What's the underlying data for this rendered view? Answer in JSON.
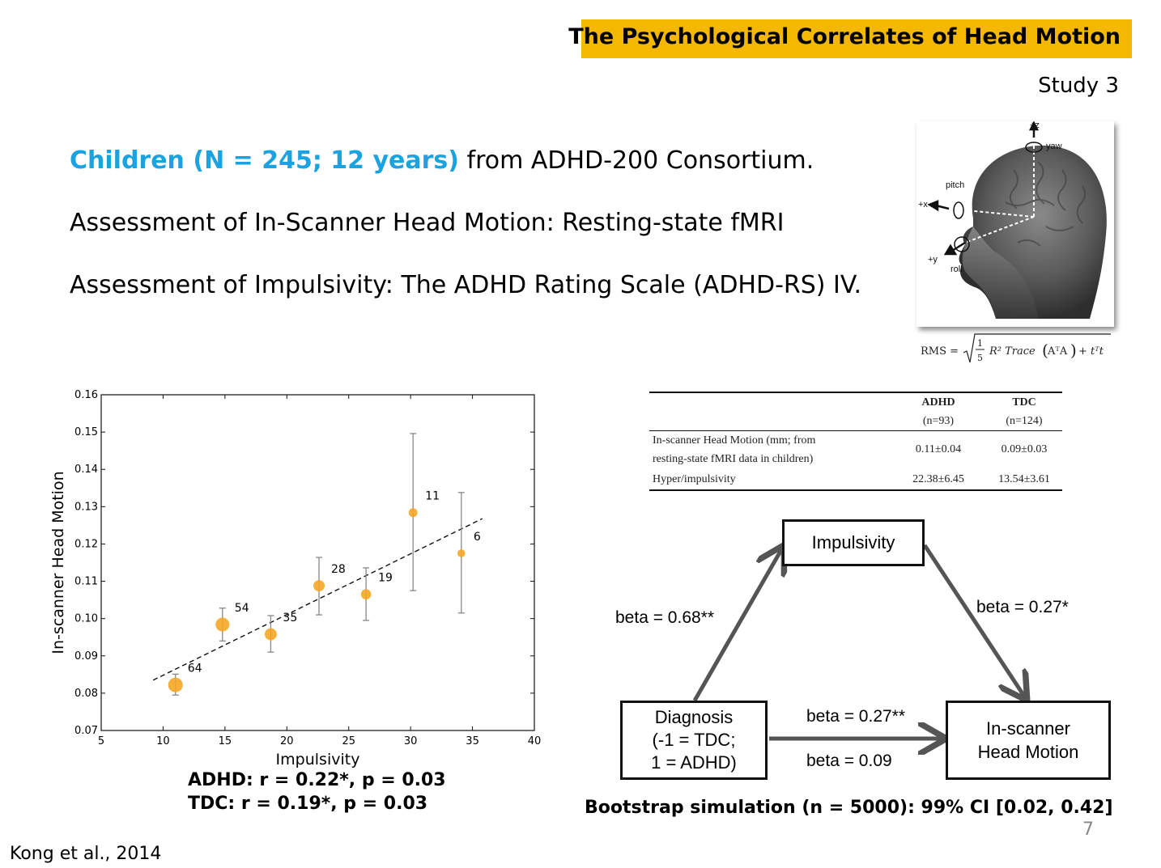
{
  "header": {
    "title": "The Psychological Correlates of Head Motion",
    "study": "Study 3"
  },
  "bullets": {
    "line1_highlight": "Children (N = 245; 12 years)",
    "line1_rest": " from ADHD-200 Consortium.",
    "line2": "Assessment of In-Scanner Head Motion: Resting-state fMRI",
    "line3": "Assessment of Impulsivity: The ADHD Rating Scale (ADHD-RS) IV."
  },
  "head_figure": {
    "labels": {
      "z": "+z",
      "yaw": "yaw",
      "pitch": "pitch",
      "x": "+x",
      "y": "+y",
      "roll": "roll"
    },
    "formula": {
      "lhs": "RMS =",
      "frac_num": "1",
      "frac_den": "5",
      "body": "R² Trace",
      "matrix": "AᵀA",
      "tail": "+ tᵀt"
    }
  },
  "chart_data": {
    "type": "scatter",
    "xlabel": "Impulsivity",
    "ylabel": "In-scanner Head Motion",
    "xlim": [
      5,
      40
    ],
    "ylim": [
      0.07,
      0.16
    ],
    "xticks": [
      "5",
      "10",
      "15",
      "20",
      "25",
      "30",
      "35",
      "40"
    ],
    "yticks": [
      "0.07",
      "0.08",
      "0.09",
      "0.10",
      "0.11",
      "0.12",
      "0.13",
      "0.14",
      "0.15",
      "0.16"
    ],
    "points": [
      {
        "x": 11.0,
        "y": 0.0822,
        "err_low": 0.0795,
        "err_high": 0.0851,
        "n": "64"
      },
      {
        "x": 14.8,
        "y": 0.0984,
        "err_low": 0.094,
        "err_high": 0.1028,
        "n": "54"
      },
      {
        "x": 18.7,
        "y": 0.0958,
        "err_low": 0.091,
        "err_high": 0.1008,
        "n": "35"
      },
      {
        "x": 22.6,
        "y": 0.1088,
        "err_low": 0.101,
        "err_high": 0.1164,
        "n": "28"
      },
      {
        "x": 26.4,
        "y": 0.1065,
        "err_low": 0.0995,
        "err_high": 0.1136,
        "n": "19"
      },
      {
        "x": 30.2,
        "y": 0.1284,
        "err_low": 0.1075,
        "err_high": 0.1496,
        "n": "11"
      },
      {
        "x": 34.1,
        "y": 0.1175,
        "err_low": 0.1015,
        "err_high": 0.1338,
        "n": "6"
      }
    ],
    "fit_line": {
      "x": [
        9.2,
        35.8
      ],
      "y": [
        0.0835,
        0.1268
      ]
    },
    "grid": false,
    "marker_color": "#f5a623"
  },
  "stats": {
    "adhd": "ADHD: r = 0.22*, p = 0.03",
    "tdc": "TDC: r = 0.19*, p = 0.03"
  },
  "table": {
    "col1": "ADHD",
    "col1_n": "(n=93)",
    "col2": "TDC",
    "col2_n": "(n=124)",
    "row1_label_a": "In-scanner Head Motion (mm; from",
    "row1_label_b": "resting-state fMRI data in children)",
    "row1_adhd": "0.11±0.04",
    "row1_tdc": "0.09±0.03",
    "row2_label": "Hyper/impulsivity",
    "row2_adhd": "22.38±6.45",
    "row2_tdc": "13.54±3.61"
  },
  "mediation": {
    "impulsivity": "Impulsivity",
    "diagnosis_1": "Diagnosis",
    "diagnosis_2": "(-1 = TDC;",
    "diagnosis_3": "1 = ADHD)",
    "outcome_1": "In-scanner",
    "outcome_2": "Head  Motion",
    "beta_a": "beta = 0.68**",
    "beta_b": "beta = 0.27*",
    "beta_c": "beta = 0.27**",
    "beta_c_prime": "beta = 0.09",
    "bootstrap": "Bootstrap simulation (n = 5000): 99% CI [0.02, 0.42]"
  },
  "footer": {
    "citation": "Kong et al., 2014",
    "page": "7"
  }
}
